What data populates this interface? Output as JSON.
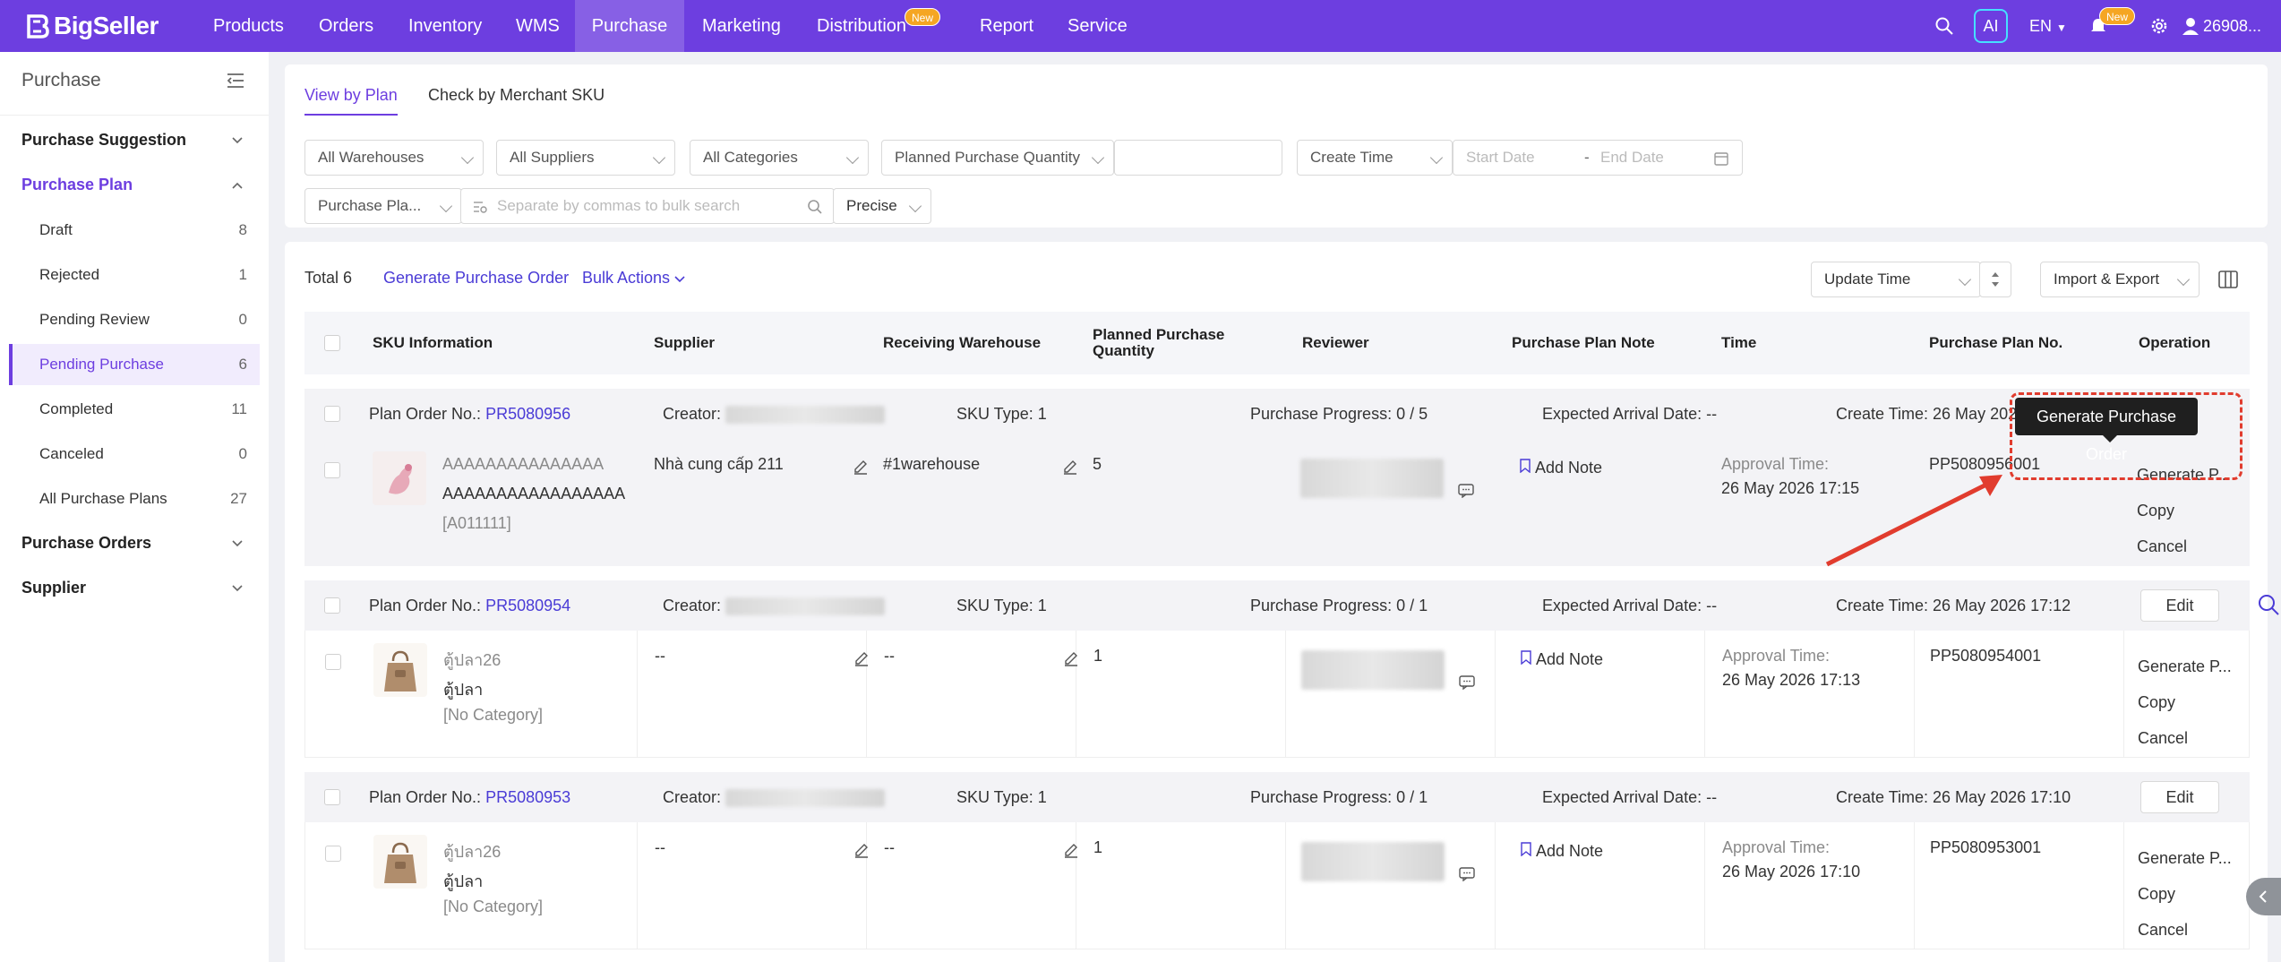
{
  "brand": {
    "name": "BigSeller"
  },
  "nav": {
    "items": [
      "Products",
      "Orders",
      "Inventory",
      "WMS",
      "Purchase",
      "Marketing",
      "Distribution",
      "Report",
      "Service"
    ],
    "new_badge": "New",
    "ai": "AI",
    "lang": "EN",
    "bell_badge": "New",
    "user": "26908..."
  },
  "sidebar": {
    "title": "Purchase",
    "groups": [
      "Purchase Suggestion",
      "Purchase Plan",
      "Purchase Orders",
      "Supplier"
    ],
    "items": [
      {
        "label": "Draft",
        "count": "8"
      },
      {
        "label": "Rejected",
        "count": "1"
      },
      {
        "label": "Pending Review",
        "count": "0"
      },
      {
        "label": "Pending Purchase",
        "count": "6"
      },
      {
        "label": "Completed",
        "count": "11"
      },
      {
        "label": "Canceled",
        "count": "0"
      },
      {
        "label": "All Purchase Plans",
        "count": "27"
      }
    ]
  },
  "tabs": [
    "View by Plan",
    "Check by Merchant SKU"
  ],
  "filters": {
    "warehouses": "All Warehouses",
    "suppliers": "All Suppliers",
    "categories": "All Categories",
    "quantity": "Planned Purchase Quantity",
    "time": "Create Time",
    "start_date": "Start Date",
    "dash": "-",
    "end_date": "End Date",
    "plan_field": "Purchase Pla...",
    "search_placeholder": "Separate by commas to bulk search",
    "match": "Precise"
  },
  "toolbar": {
    "total": "Total 6",
    "generate": "Generate Purchase Order",
    "bulk": "Bulk Actions",
    "sort": "Update Time",
    "import_export": "Import & Export"
  },
  "columns": [
    "SKU Information",
    "Supplier",
    "Receiving Warehouse",
    "Planned Purchase Quantity",
    "Reviewer",
    "Purchase Plan Note",
    "Time",
    "Purchase Plan No.",
    "Operation"
  ],
  "labels": {
    "plan_no": "Plan Order No.:",
    "creator": "Creator:",
    "sku_type": "SKU Type: 1",
    "expected": "Expected Arrival Date: --",
    "add_note": "Add Note",
    "approval": "Approval Time:",
    "edit": "Edit",
    "generate_short": "Generate P...",
    "copy": "Copy",
    "cancel": "Cancel"
  },
  "rows": [
    {
      "plan_no": "PR5080956",
      "progress": "Purchase Progress: 0 / 5",
      "create_time": "Create Time: 26 May 2026",
      "sku_name1": "AAAAAAAAAAAAAAA",
      "sku_name2": "AAAAAAAAAAAAAAAAA",
      "sku_code": "[A011111]",
      "supplier": "Nhà cung cấp 211",
      "warehouse": "#1warehouse",
      "qty": "5",
      "approval_time": "26 May 2026 17:15",
      "pp_no": "PP5080956001"
    },
    {
      "plan_no": "PR5080954",
      "progress": "Purchase Progress: 0 / 1",
      "create_time": "Create Time: 26 May 2026 17:12",
      "sku_name1": "ตู้ปลา26",
      "sku_name2": "ตู้ปลา",
      "sku_code": "[No Category]",
      "supplier": "--",
      "warehouse": "--",
      "qty": "1",
      "approval_time": "26 May 2026 17:13",
      "pp_no": "PP5080954001"
    },
    {
      "plan_no": "PR5080953",
      "progress": "Purchase Progress: 0 / 1",
      "create_time": "Create Time: 26 May 2026 17:10",
      "sku_name1": "ตู้ปลา26",
      "sku_name2": "ตู้ปลา",
      "sku_code": "[No Category]",
      "supplier": "--",
      "warehouse": "--",
      "qty": "1",
      "approval_time": "26 May 2026 17:10",
      "pp_no": "PP5080953001"
    }
  ],
  "tooltip": "Generate Purchase Order",
  "colors": {
    "brand": "#6d3ee0",
    "link": "#4a3bd6",
    "annotation": "#e13c2e"
  }
}
